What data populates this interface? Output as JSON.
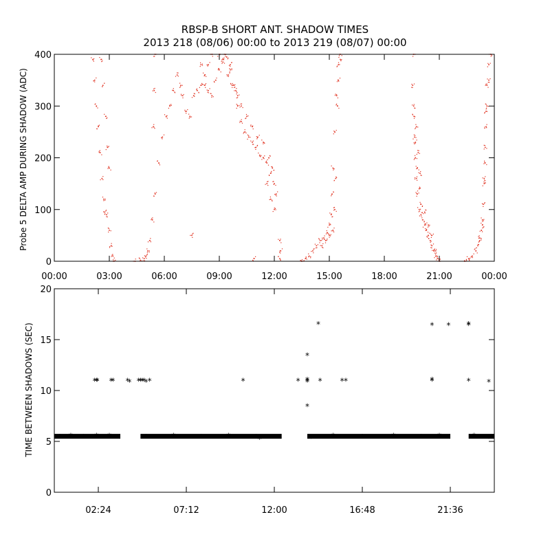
{
  "title_line1": "RBSP-B SHORT ANT. SHADOW TIMES",
  "title_line2": "2013 218 (08/06) 00:00 to 2013 219 (08/07) 00:00",
  "colors": {
    "top_points": "#e0301e",
    "bottom_points": "#000000",
    "axes": "#000000"
  },
  "chart_data": [
    {
      "type": "scatter",
      "title": "RBSP-B SHORT ANT. SHADOW TIMES",
      "subtitle": "2013 218 (08/06) 00:00 to 2013 219 (08/07) 00:00",
      "xlabel": "",
      "ylabel": "Probe 5 DELTA AMP DURING SHADOW (ADC)",
      "xlim_hours": [
        0,
        24
      ],
      "ylim": [
        0,
        400
      ],
      "x_ticks": [
        "00:00",
        "03:00",
        "06:00",
        "09:00",
        "12:00",
        "15:00",
        "18:00",
        "21:00",
        "00:00"
      ],
      "y_ticks": [
        "0",
        "100",
        "200",
        "300",
        "400"
      ],
      "grid": false,
      "marker": "dot",
      "series": [
        {
          "points": [
            [
              2.1,
              390
            ],
            [
              2.2,
              350
            ],
            [
              2.3,
              300
            ],
            [
              2.4,
              260
            ],
            [
              2.5,
              210
            ],
            [
              2.6,
              160
            ],
            [
              2.7,
              120
            ],
            [
              2.75,
              95
            ],
            [
              2.85,
              90
            ],
            [
              3.0,
              60
            ],
            [
              3.1,
              30
            ],
            [
              3.2,
              10
            ],
            [
              3.25,
              0
            ],
            [
              2.55,
              390
            ],
            [
              2.65,
              340
            ],
            [
              2.8,
              280
            ],
            [
              2.9,
              220
            ],
            [
              3.0,
              180
            ],
            [
              4.4,
              0
            ],
            [
              4.7,
              2
            ],
            [
              4.9,
              5
            ],
            [
              5.0,
              10
            ],
            [
              5.1,
              20
            ],
            [
              5.2,
              40
            ],
            [
              5.35,
              80
            ],
            [
              5.5,
              130
            ],
            [
              5.7,
              190
            ],
            [
              5.9,
              240
            ],
            [
              6.1,
              280
            ],
            [
              6.3,
              300
            ],
            [
              6.5,
              330
            ],
            [
              6.7,
              360
            ],
            [
              6.9,
              340
            ],
            [
              7.0,
              320
            ],
            [
              7.2,
              290
            ],
            [
              7.4,
              280
            ],
            [
              7.6,
              320
            ],
            [
              7.8,
              330
            ],
            [
              8.0,
              340
            ],
            [
              8.2,
              360
            ],
            [
              8.4,
              380
            ],
            [
              8.6,
              400
            ],
            [
              5.5,
              400
            ],
            [
              5.45,
              330
            ],
            [
              5.4,
              260
            ],
            [
              8.0,
              380
            ],
            [
              8.2,
              340
            ],
            [
              8.4,
              330
            ],
            [
              8.6,
              320
            ],
            [
              8.8,
              350
            ],
            [
              9.0,
              370
            ],
            [
              9.2,
              390
            ],
            [
              9.4,
              395
            ],
            [
              9.6,
              380
            ],
            [
              9.8,
              340
            ],
            [
              10.0,
              300
            ],
            [
              10.2,
              270
            ],
            [
              10.4,
              250
            ],
            [
              10.6,
              240
            ],
            [
              10.8,
              230
            ],
            [
              11.0,
              220
            ],
            [
              11.2,
              205
            ],
            [
              11.4,
              200
            ],
            [
              11.6,
              190
            ],
            [
              11.8,
              170
            ],
            [
              12.0,
              150
            ],
            [
              12.1,
              130
            ],
            [
              9.3,
              400
            ],
            [
              9.6,
              370
            ],
            [
              9.9,
              330
            ],
            [
              10.2,
              300
            ],
            [
              10.5,
              280
            ],
            [
              10.8,
              260
            ],
            [
              11.1,
              240
            ],
            [
              11.4,
              230
            ],
            [
              11.7,
              200
            ],
            [
              11.9,
              180
            ],
            [
              9.0,
              400
            ],
            [
              9.2,
              385
            ],
            [
              9.5,
              360
            ],
            [
              9.7,
              340
            ],
            [
              10.0,
              320
            ],
            [
              11.6,
              150
            ],
            [
              11.8,
              120
            ],
            [
              12.0,
              100
            ],
            [
              12.3,
              40
            ],
            [
              12.35,
              20
            ],
            [
              12.3,
              5
            ],
            [
              10.9,
              5
            ],
            [
              13.5,
              0
            ],
            [
              13.7,
              5
            ],
            [
              13.9,
              10
            ],
            [
              14.1,
              20
            ],
            [
              14.3,
              30
            ],
            [
              14.5,
              40
            ],
            [
              14.7,
              45
            ],
            [
              14.9,
              55
            ],
            [
              15.0,
              70
            ],
            [
              15.1,
              90
            ],
            [
              15.15,
              130
            ],
            [
              15.2,
              180
            ],
            [
              15.3,
              250
            ],
            [
              15.4,
              320
            ],
            [
              15.5,
              380
            ],
            [
              15.6,
              400
            ],
            [
              14.6,
              30
            ],
            [
              14.8,
              40
            ],
            [
              15.0,
              50
            ],
            [
              15.2,
              60
            ],
            [
              15.3,
              100
            ],
            [
              15.35,
              160
            ],
            [
              15.45,
              300
            ],
            [
              15.5,
              350
            ],
            [
              15.6,
              390
            ],
            [
              19.6,
              400
            ],
            [
              19.6,
              300
            ],
            [
              19.65,
              240
            ],
            [
              19.7,
              200
            ],
            [
              19.75,
              160
            ],
            [
              19.8,
              130
            ],
            [
              19.9,
              100
            ],
            [
              20.0,
              90
            ],
            [
              20.1,
              80
            ],
            [
              20.2,
              70
            ],
            [
              20.3,
              60
            ],
            [
              20.4,
              50
            ],
            [
              20.5,
              40
            ],
            [
              20.6,
              30
            ],
            [
              20.7,
              20
            ],
            [
              20.8,
              10
            ],
            [
              20.9,
              5
            ],
            [
              21.0,
              0
            ],
            [
              19.55,
              340
            ],
            [
              19.62,
              280
            ],
            [
              19.7,
              230
            ],
            [
              19.8,
              180
            ],
            [
              19.9,
              140
            ],
            [
              20.0,
              110
            ],
            [
              20.2,
              95
            ],
            [
              20.4,
              70
            ],
            [
              20.6,
              50
            ],
            [
              20.8,
              20
            ],
            [
              19.75,
              260
            ],
            [
              19.85,
              210
            ],
            [
              19.95,
              170
            ],
            [
              22.4,
              0
            ],
            [
              22.6,
              5
            ],
            [
              22.8,
              10
            ],
            [
              23.0,
              20
            ],
            [
              23.1,
              30
            ],
            [
              23.2,
              45
            ],
            [
              23.3,
              60
            ],
            [
              23.35,
              80
            ],
            [
              23.4,
              110
            ],
            [
              23.45,
              160
            ],
            [
              23.5,
              220
            ],
            [
              23.55,
              290
            ],
            [
              23.6,
              340
            ],
            [
              23.7,
              380
            ],
            [
              23.8,
              400
            ],
            [
              23.2,
              40
            ],
            [
              23.35,
              70
            ],
            [
              23.45,
              150
            ],
            [
              23.5,
              190
            ],
            [
              23.55,
              260
            ],
            [
              23.6,
              300
            ],
            [
              23.7,
              350
            ],
            [
              7.5,
              50
            ]
          ]
        }
      ]
    },
    {
      "type": "scatter",
      "title": "",
      "xlabel": "",
      "ylabel": "TIME BETWEEN SHADOWS (SEC)",
      "xlim_hours": [
        0,
        24
      ],
      "ylim": [
        0,
        20
      ],
      "x_tick_values_hours": [
        2.4,
        7.2,
        12.0,
        16.8,
        21.6
      ],
      "x_ticks": [
        "02:24",
        "07:12",
        "12:00",
        "16:48",
        "21:36"
      ],
      "y_ticks": [
        "0",
        "5",
        "10",
        "15",
        "20"
      ],
      "grid": false,
      "marker": "asterisk",
      "baseline_segments": [
        {
          "x_start": 0.0,
          "x_end": 3.6,
          "y": 5.5
        },
        {
          "x_start": 4.7,
          "x_end": 12.4,
          "y": 5.5
        },
        {
          "x_start": 13.8,
          "x_end": 21.6,
          "y": 5.5
        },
        {
          "x_start": 22.6,
          "x_end": 24.0,
          "y": 5.5
        }
      ],
      "series": [
        {
          "points": [
            [
              0.3,
              5.4
            ],
            [
              0.9,
              5.5
            ],
            [
              1.6,
              5.4
            ],
            [
              2.3,
              5.5
            ],
            [
              3.0,
              5.5
            ],
            [
              5.0,
              5.4
            ],
            [
              6.5,
              5.5
            ],
            [
              8.0,
              5.4
            ],
            [
              9.5,
              5.5
            ],
            [
              11.0,
              5.4
            ],
            [
              11.2,
              5.2
            ],
            [
              14.0,
              5.3
            ],
            [
              15.2,
              5.5
            ],
            [
              16.8,
              5.4
            ],
            [
              18.5,
              5.5
            ],
            [
              20.0,
              5.4
            ],
            [
              21.0,
              5.5
            ],
            [
              22.9,
              5.5
            ],
            [
              23.7,
              5.3
            ],
            [
              2.2,
              10.9
            ],
            [
              2.3,
              10.9
            ],
            [
              2.35,
              10.9
            ],
            [
              3.1,
              10.9
            ],
            [
              3.2,
              10.9
            ],
            [
              4.0,
              10.9
            ],
            [
              4.1,
              10.8
            ],
            [
              4.6,
              10.9
            ],
            [
              4.7,
              10.9
            ],
            [
              4.8,
              10.9
            ],
            [
              4.9,
              10.9
            ],
            [
              5.0,
              10.8
            ],
            [
              5.2,
              10.9
            ],
            [
              10.3,
              10.9
            ],
            [
              13.3,
              10.9
            ],
            [
              13.8,
              10.9
            ],
            [
              13.8,
              11.0
            ],
            [
              13.8,
              10.8
            ],
            [
              14.5,
              10.9
            ],
            [
              15.7,
              10.9
            ],
            [
              15.9,
              10.9
            ],
            [
              20.6,
              10.9
            ],
            [
              20.6,
              11.0
            ],
            [
              22.6,
              10.9
            ],
            [
              23.7,
              10.8
            ],
            [
              13.8,
              13.4
            ],
            [
              13.8,
              8.4
            ],
            [
              14.4,
              16.5
            ],
            [
              20.6,
              16.4
            ],
            [
              21.5,
              16.4
            ],
            [
              22.6,
              16.5
            ],
            [
              22.6,
              16.4
            ]
          ]
        }
      ]
    }
  ]
}
